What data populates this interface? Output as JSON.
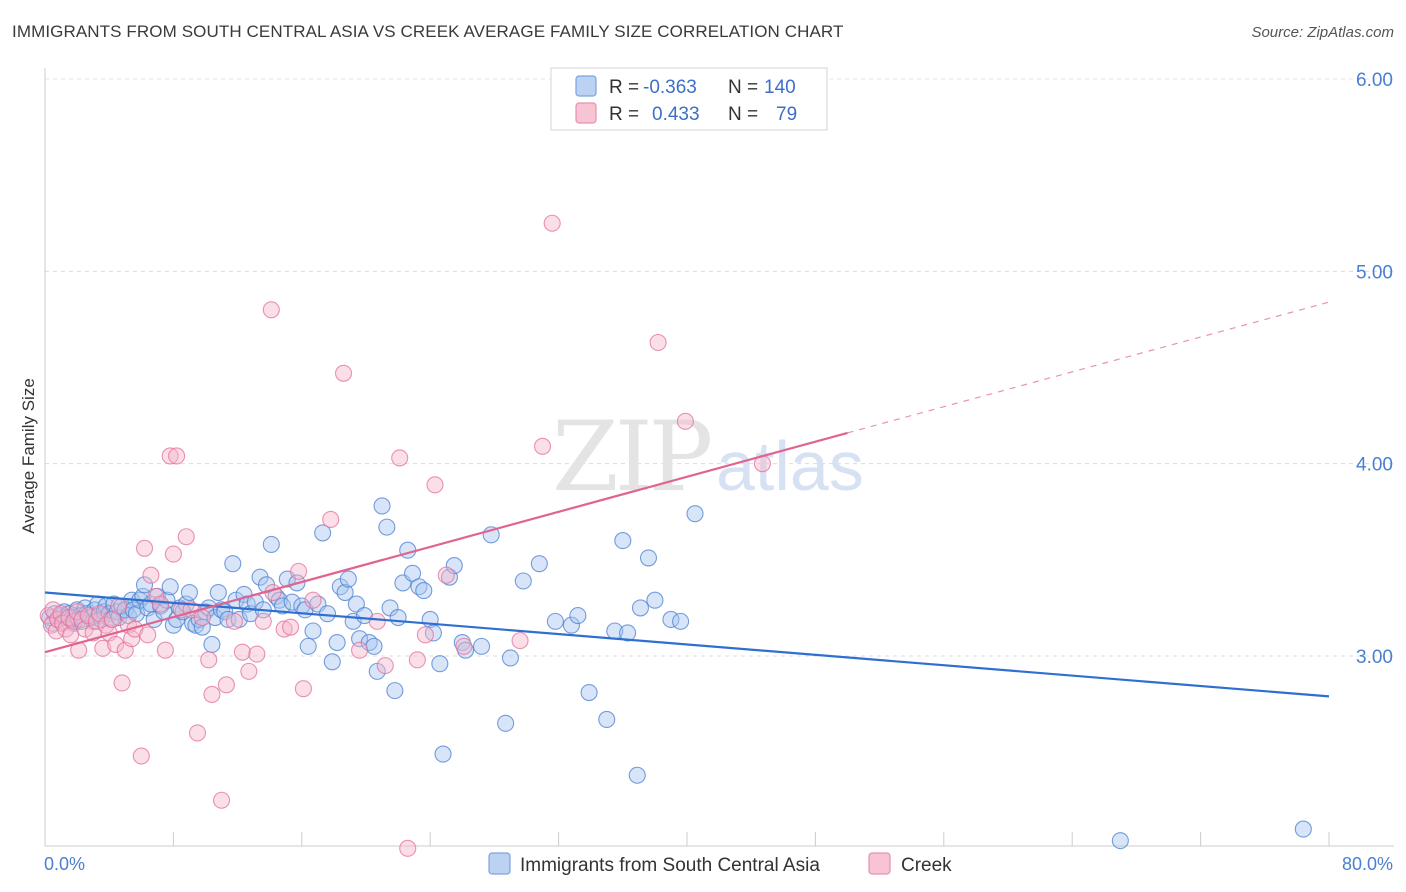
{
  "header": {
    "title": "IMMIGRANTS FROM SOUTH CENTRAL ASIA VS CREEK AVERAGE FAMILY SIZE CORRELATION CHART",
    "source": "Source: ZipAtlas.com"
  },
  "watermark": {
    "zip": "ZIP",
    "atlas": "atlas"
  },
  "legend": {
    "rows": [
      {
        "r_label": "R =",
        "r_value": "-0.363",
        "n_label": "N =",
        "n_value": "140"
      },
      {
        "r_label": "R =",
        "r_value": "0.433",
        "n_label": "N =",
        "n_value": "79"
      }
    ]
  },
  "bottom_legend": [
    "Immigrants from South Central Asia",
    "Creek"
  ],
  "colors": {
    "blue": "#4a7fd0",
    "blue_fill": "#a9c6f0",
    "blue_line": "#2f6fd0",
    "pink": "#e46f9b",
    "pink_fill": "#f5b7cb",
    "pink_line": "#e0648f"
  },
  "chart_data": {
    "type": "scatter",
    "title": "IMMIGRANTS FROM SOUTH CENTRAL ASIA VS CREEK AVERAGE FAMILY SIZE CORRELATION CHART",
    "xlabel": "",
    "ylabel": "Average Family Size",
    "xlim": [
      0,
      80
    ],
    "ylim": [
      2.0,
      6.15
    ],
    "x_tick_labels": [
      "0.0%",
      "80.0%"
    ],
    "y_ticks": [
      3.0,
      4.0,
      5.0,
      6.0
    ],
    "y_tick_labels": [
      "3.00",
      "4.00",
      "5.00",
      "6.00"
    ],
    "grid": "horizontal dashed",
    "legend_position": "top-center",
    "series": [
      {
        "name": "Immigrants from South Central Asia",
        "color": "#4a7fd0",
        "R": -0.363,
        "N": 140,
        "trend": {
          "x": [
            0,
            80
          ],
          "y": [
            3.33,
            2.79
          ]
        },
        "points": [
          [
            0.3,
            3.2
          ],
          [
            0.5,
            3.17
          ],
          [
            0.6,
            3.22
          ],
          [
            0.8,
            3.19
          ],
          [
            1.0,
            3.21
          ],
          [
            1.1,
            3.18
          ],
          [
            1.2,
            3.23
          ],
          [
            1.3,
            3.2
          ],
          [
            1.5,
            3.22
          ],
          [
            1.6,
            3.19
          ],
          [
            1.7,
            3.2
          ],
          [
            1.8,
            3.17
          ],
          [
            1.9,
            3.21
          ],
          [
            2.0,
            3.24
          ],
          [
            2.1,
            3.19
          ],
          [
            2.2,
            3.21
          ],
          [
            2.3,
            3.18
          ],
          [
            2.5,
            3.25
          ],
          [
            2.6,
            3.22
          ],
          [
            2.8,
            3.2
          ],
          [
            3.0,
            3.18
          ],
          [
            3.1,
            3.24
          ],
          [
            3.3,
            3.27
          ],
          [
            3.4,
            3.21
          ],
          [
            3.5,
            3.19
          ],
          [
            3.7,
            3.23
          ],
          [
            3.8,
            3.26
          ],
          [
            4.0,
            3.22
          ],
          [
            4.1,
            3.19
          ],
          [
            4.3,
            3.27
          ],
          [
            4.5,
            3.23
          ],
          [
            4.6,
            3.2
          ],
          [
            4.8,
            3.26
          ],
          [
            5.0,
            3.24
          ],
          [
            5.2,
            3.21
          ],
          [
            5.4,
            3.29
          ],
          [
            5.5,
            3.24
          ],
          [
            5.7,
            3.22
          ],
          [
            5.9,
            3.29
          ],
          [
            6.1,
            3.31
          ],
          [
            6.2,
            3.37
          ],
          [
            6.4,
            3.25
          ],
          [
            6.6,
            3.27
          ],
          [
            6.8,
            3.19
          ],
          [
            7.0,
            3.31
          ],
          [
            7.2,
            3.26
          ],
          [
            7.4,
            3.23
          ],
          [
            7.6,
            3.29
          ],
          [
            7.8,
            3.36
          ],
          [
            8.0,
            3.16
          ],
          [
            8.2,
            3.19
          ],
          [
            8.4,
            3.25
          ],
          [
            8.6,
            3.23
          ],
          [
            8.8,
            3.27
          ],
          [
            9.0,
            3.33
          ],
          [
            9.2,
            3.17
          ],
          [
            9.4,
            3.16
          ],
          [
            9.6,
            3.19
          ],
          [
            9.8,
            3.15
          ],
          [
            10.0,
            3.23
          ],
          [
            10.2,
            3.25
          ],
          [
            10.4,
            3.06
          ],
          [
            10.6,
            3.2
          ],
          [
            10.8,
            3.33
          ],
          [
            11.0,
            3.24
          ],
          [
            11.2,
            3.23
          ],
          [
            11.4,
            3.19
          ],
          [
            11.7,
            3.48
          ],
          [
            11.9,
            3.29
          ],
          [
            12.1,
            3.19
          ],
          [
            12.4,
            3.32
          ],
          [
            12.6,
            3.27
          ],
          [
            12.8,
            3.22
          ],
          [
            13.1,
            3.28
          ],
          [
            13.4,
            3.41
          ],
          [
            13.6,
            3.24
          ],
          [
            13.8,
            3.37
          ],
          [
            14.1,
            3.58
          ],
          [
            14.4,
            3.31
          ],
          [
            14.6,
            3.29
          ],
          [
            14.8,
            3.26
          ],
          [
            15.1,
            3.4
          ],
          [
            15.4,
            3.28
          ],
          [
            15.7,
            3.38
          ],
          [
            16.0,
            3.26
          ],
          [
            16.2,
            3.24
          ],
          [
            16.4,
            3.05
          ],
          [
            16.7,
            3.13
          ],
          [
            17.0,
            3.27
          ],
          [
            17.3,
            3.64
          ],
          [
            17.6,
            3.22
          ],
          [
            17.9,
            2.97
          ],
          [
            18.2,
            3.07
          ],
          [
            18.4,
            3.36
          ],
          [
            18.7,
            3.33
          ],
          [
            18.9,
            3.4
          ],
          [
            19.2,
            3.18
          ],
          [
            19.4,
            3.27
          ],
          [
            19.6,
            3.09
          ],
          [
            19.9,
            3.21
          ],
          [
            20.2,
            3.07
          ],
          [
            20.5,
            3.05
          ],
          [
            20.7,
            2.92
          ],
          [
            21.0,
            3.78
          ],
          [
            21.3,
            3.67
          ],
          [
            21.5,
            3.25
          ],
          [
            21.8,
            2.82
          ],
          [
            22.0,
            3.2
          ],
          [
            22.3,
            3.38
          ],
          [
            22.6,
            3.55
          ],
          [
            22.9,
            3.43
          ],
          [
            23.3,
            3.36
          ],
          [
            23.6,
            3.34
          ],
          [
            24.0,
            3.19
          ],
          [
            24.2,
            3.12
          ],
          [
            24.6,
            2.96
          ],
          [
            24.8,
            2.49
          ],
          [
            25.2,
            3.41
          ],
          [
            25.5,
            3.47
          ],
          [
            26.0,
            3.07
          ],
          [
            26.2,
            3.03
          ],
          [
            27.2,
            3.05
          ],
          [
            27.8,
            3.63
          ],
          [
            28.7,
            2.65
          ],
          [
            29.0,
            2.99
          ],
          [
            29.8,
            3.39
          ],
          [
            30.8,
            3.48
          ],
          [
            31.8,
            3.18
          ],
          [
            32.8,
            3.16
          ],
          [
            33.2,
            3.21
          ],
          [
            33.9,
            2.81
          ],
          [
            35.0,
            2.67
          ],
          [
            35.5,
            3.13
          ],
          [
            36.0,
            3.6
          ],
          [
            36.3,
            3.12
          ],
          [
            36.9,
            2.38
          ],
          [
            37.1,
            3.25
          ],
          [
            37.6,
            3.51
          ],
          [
            38.0,
            3.29
          ],
          [
            39.0,
            3.19
          ],
          [
            39.6,
            3.18
          ],
          [
            40.5,
            3.74
          ],
          [
            67.0,
            2.04
          ],
          [
            78.4,
            2.1
          ]
        ]
      },
      {
        "name": "Creek",
        "color": "#e46f9b",
        "R": 0.433,
        "N": 79,
        "trend": {
          "x": [
            0,
            50
          ],
          "y": [
            3.02,
            4.16
          ],
          "dashed_extension": {
            "x": [
              50,
              80
            ],
            "y": [
              4.16,
              4.84
            ]
          }
        },
        "points": [
          [
            0.2,
            3.21
          ],
          [
            0.4,
            3.16
          ],
          [
            0.5,
            3.24
          ],
          [
            0.7,
            3.13
          ],
          [
            0.8,
            3.19
          ],
          [
            1.0,
            3.22
          ],
          [
            1.1,
            3.17
          ],
          [
            1.3,
            3.14
          ],
          [
            1.5,
            3.2
          ],
          [
            1.6,
            3.11
          ],
          [
            1.8,
            3.18
          ],
          [
            2.0,
            3.23
          ],
          [
            2.1,
            3.03
          ],
          [
            2.3,
            3.19
          ],
          [
            2.5,
            3.14
          ],
          [
            2.7,
            3.21
          ],
          [
            3.0,
            3.12
          ],
          [
            3.2,
            3.18
          ],
          [
            3.4,
            3.22
          ],
          [
            3.6,
            3.04
          ],
          [
            3.8,
            3.16
          ],
          [
            4.0,
            3.12
          ],
          [
            4.2,
            3.19
          ],
          [
            4.4,
            3.06
          ],
          [
            4.6,
            3.26
          ],
          [
            4.8,
            2.86
          ],
          [
            5.0,
            3.03
          ],
          [
            5.2,
            3.16
          ],
          [
            5.4,
            3.09
          ],
          [
            5.6,
            3.14
          ],
          [
            6.0,
            2.48
          ],
          [
            6.2,
            3.56
          ],
          [
            6.4,
            3.11
          ],
          [
            6.6,
            3.42
          ],
          [
            6.9,
            3.31
          ],
          [
            7.2,
            3.27
          ],
          [
            7.5,
            3.03
          ],
          [
            7.8,
            4.04
          ],
          [
            8.0,
            3.53
          ],
          [
            8.2,
            4.04
          ],
          [
            8.5,
            3.24
          ],
          [
            8.8,
            3.62
          ],
          [
            9.1,
            3.24
          ],
          [
            9.5,
            2.6
          ],
          [
            9.8,
            3.2
          ],
          [
            10.2,
            2.98
          ],
          [
            10.4,
            2.8
          ],
          [
            11.0,
            2.25
          ],
          [
            11.3,
            2.85
          ],
          [
            11.8,
            3.18
          ],
          [
            12.3,
            3.02
          ],
          [
            12.7,
            2.92
          ],
          [
            13.2,
            3.01
          ],
          [
            13.6,
            3.18
          ],
          [
            14.2,
            3.33
          ],
          [
            14.9,
            3.14
          ],
          [
            15.3,
            3.15
          ],
          [
            15.8,
            3.44
          ],
          [
            16.1,
            2.83
          ],
          [
            16.7,
            3.29
          ],
          [
            17.8,
            3.71
          ],
          [
            18.6,
            4.47
          ],
          [
            19.6,
            3.03
          ],
          [
            20.7,
            3.18
          ],
          [
            21.2,
            2.95
          ],
          [
            22.1,
            4.03
          ],
          [
            22.6,
            2.0
          ],
          [
            23.2,
            2.98
          ],
          [
            23.7,
            3.11
          ],
          [
            24.3,
            3.89
          ],
          [
            25.0,
            3.42
          ],
          [
            26.1,
            3.05
          ],
          [
            29.6,
            3.08
          ],
          [
            31.0,
            4.09
          ],
          [
            31.6,
            5.25
          ],
          [
            38.2,
            4.63
          ],
          [
            39.9,
            4.22
          ],
          [
            44.7,
            4.0
          ],
          [
            14.1,
            4.8
          ]
        ]
      }
    ]
  }
}
